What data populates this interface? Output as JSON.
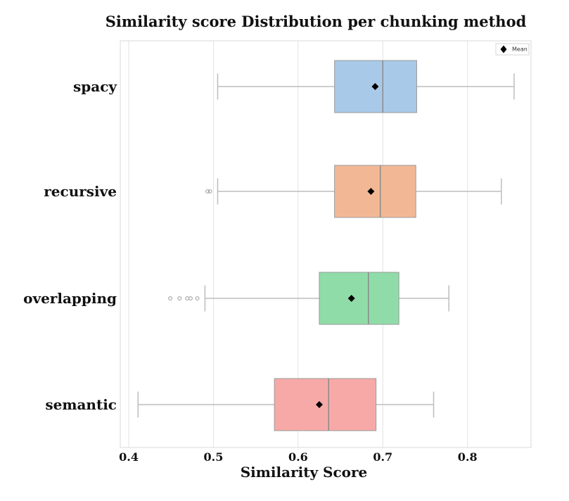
{
  "chart_data": {
    "type": "boxplot",
    "orientation": "horizontal",
    "title": "Similarity score Distribution per chunking method",
    "xlabel": "Similarity Score",
    "ylabel": "",
    "xlim": [
      0.39,
      0.875
    ],
    "xticks": [
      0.4,
      0.5,
      0.6,
      0.7,
      0.8
    ],
    "xtick_labels": [
      "0.4",
      "0.5",
      "0.6",
      "0.7",
      "0.8"
    ],
    "grid": true,
    "legend": {
      "position": "top-right",
      "entries": [
        "Mean"
      ]
    },
    "categories": [
      "spacy",
      "recursive",
      "overlapping",
      "semantic"
    ],
    "boxes": [
      {
        "name": "spacy",
        "color": "#a8c9e8",
        "whisker_low": 0.505,
        "q1": 0.643,
        "median": 0.7,
        "q3": 0.74,
        "whisker_high": 0.855,
        "mean": 0.691,
        "outliers": []
      },
      {
        "name": "recursive",
        "color": "#f2b895",
        "whisker_low": 0.505,
        "q1": 0.643,
        "median": 0.697,
        "q3": 0.739,
        "whisker_high": 0.84,
        "mean": 0.686,
        "outliers": [
          0.493,
          0.496
        ]
      },
      {
        "name": "overlapping",
        "color": "#90dca8",
        "whisker_low": 0.49,
        "q1": 0.625,
        "median": 0.683,
        "q3": 0.719,
        "whisker_high": 0.778,
        "mean": 0.663,
        "outliers": [
          0.449,
          0.46,
          0.469,
          0.473,
          0.481
        ]
      },
      {
        "name": "semantic",
        "color": "#f7a9a8",
        "whisker_low": 0.411,
        "q1": 0.572,
        "median": 0.636,
        "q3": 0.692,
        "whisker_high": 0.76,
        "mean": 0.625,
        "outliers": []
      }
    ]
  }
}
